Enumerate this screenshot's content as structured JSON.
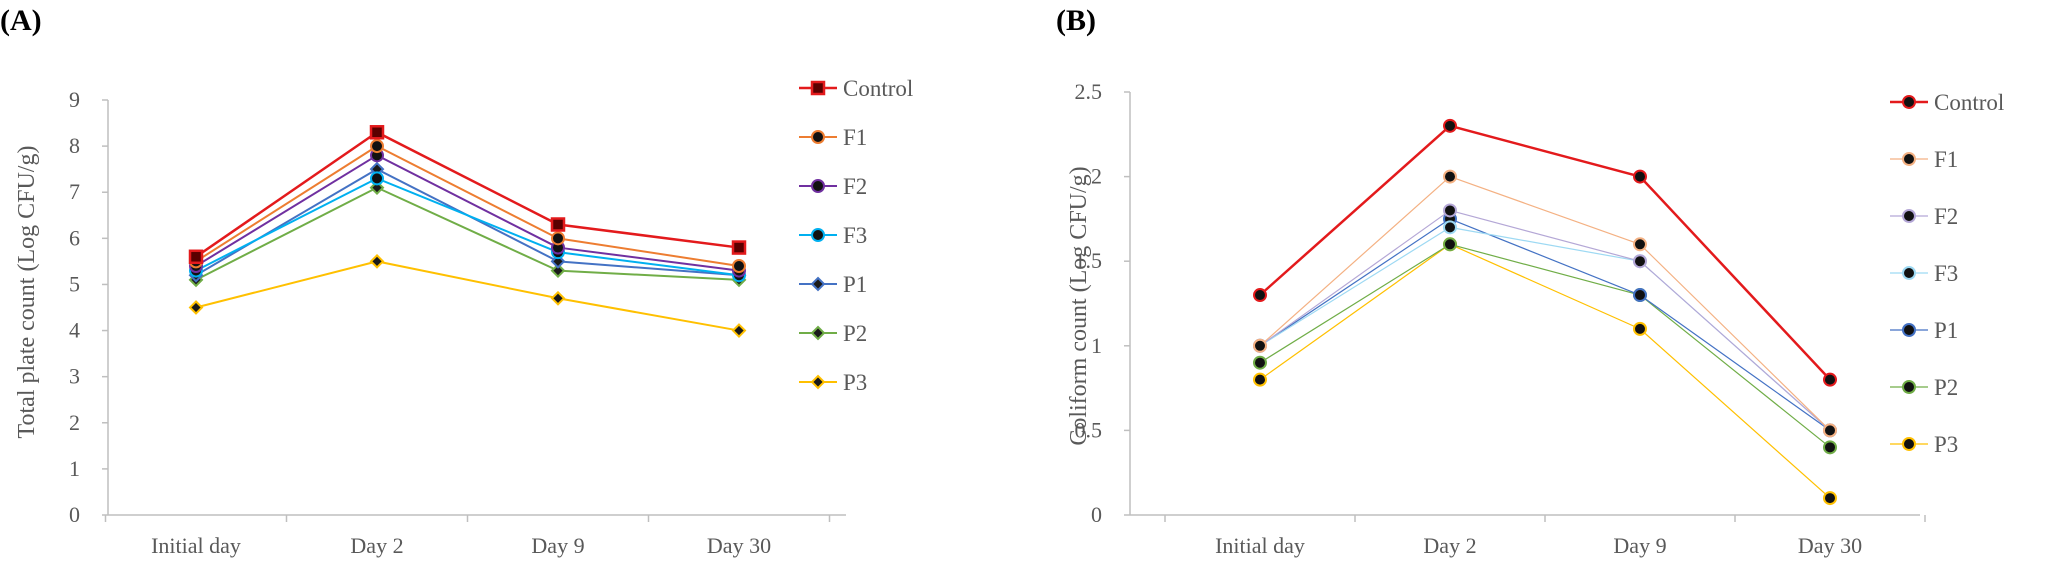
{
  "chart_data": [
    {
      "panel_label": "(A)",
      "type": "line",
      "ylabel": "Total plate count (Log CFU/g)",
      "xlabel": "",
      "categories": [
        "Initial day",
        "Day 2",
        "Day 9",
        "Day 30"
      ],
      "ylim": [
        0,
        9
      ],
      "yticks": [
        "0",
        "1",
        "2",
        "3",
        "4",
        "5",
        "6",
        "7",
        "8",
        "9"
      ],
      "grid": false,
      "legend_position": "right",
      "series": [
        {
          "name": "Control",
          "values": [
            5.6,
            8.3,
            6.3,
            5.8
          ],
          "color": "#e31a1c",
          "marker": "square",
          "width": 2.5
        },
        {
          "name": "F1",
          "values": [
            5.5,
            8.0,
            6.0,
            5.4
          ],
          "color": "#ed7d31",
          "marker": "circle",
          "width": 2
        },
        {
          "name": "F2",
          "values": [
            5.4,
            7.8,
            5.8,
            5.3
          ],
          "color": "#7030a0",
          "marker": "circle",
          "width": 2
        },
        {
          "name": "F3",
          "values": [
            5.3,
            7.3,
            5.7,
            5.2
          ],
          "color": "#00b0f0",
          "marker": "circle",
          "width": 2
        },
        {
          "name": "P1",
          "values": [
            5.2,
            7.5,
            5.5,
            5.2
          ],
          "color": "#4472c4",
          "marker": "diamond",
          "width": 2
        },
        {
          "name": "P2",
          "values": [
            5.1,
            7.1,
            5.3,
            5.1
          ],
          "color": "#70ad47",
          "marker": "diamond",
          "width": 2
        },
        {
          "name": "P3",
          "values": [
            4.5,
            5.5,
            4.7,
            4.0
          ],
          "color": "#ffc000",
          "marker": "diamond",
          "width": 2
        }
      ]
    },
    {
      "panel_label": "(B)",
      "type": "line",
      "ylabel": "Coliform count (Log CFU/g)",
      "xlabel": "",
      "categories": [
        "Initial day",
        "Day 2",
        "Day 9",
        "Day 30"
      ],
      "ylim": [
        0,
        2.5
      ],
      "yticks": [
        "0",
        "0.5",
        "1",
        "1.5",
        "2",
        "2.5"
      ],
      "grid": false,
      "legend_position": "right",
      "series": [
        {
          "name": "Control",
          "values": [
            1.3,
            2.3,
            2.0,
            0.8
          ],
          "color": "#e31a1c",
          "marker": "circle",
          "width": 2.5
        },
        {
          "name": "F1",
          "values": [
            1.0,
            2.0,
            1.6,
            0.5
          ],
          "color": "#f4b183",
          "marker": "circle",
          "width": 1.2
        },
        {
          "name": "F2",
          "values": [
            1.0,
            1.8,
            1.5,
            0.5
          ],
          "color": "#b4a7d6",
          "marker": "circle",
          "width": 1.2
        },
        {
          "name": "F3",
          "values": [
            1.0,
            1.7,
            1.5,
            0.5
          ],
          "color": "#9dd9f3",
          "marker": "circle",
          "width": 1.2
        },
        {
          "name": "P1",
          "values": [
            1.0,
            1.75,
            1.3,
            0.5
          ],
          "color": "#4472c4",
          "marker": "circle",
          "width": 1.2
        },
        {
          "name": "P2",
          "values": [
            0.9,
            1.6,
            1.3,
            0.4
          ],
          "color": "#70ad47",
          "marker": "circle",
          "width": 1.2
        },
        {
          "name": "P3",
          "values": [
            0.8,
            1.6,
            1.1,
            0.1
          ],
          "color": "#ffc000",
          "marker": "circle",
          "width": 1.2
        }
      ]
    }
  ]
}
